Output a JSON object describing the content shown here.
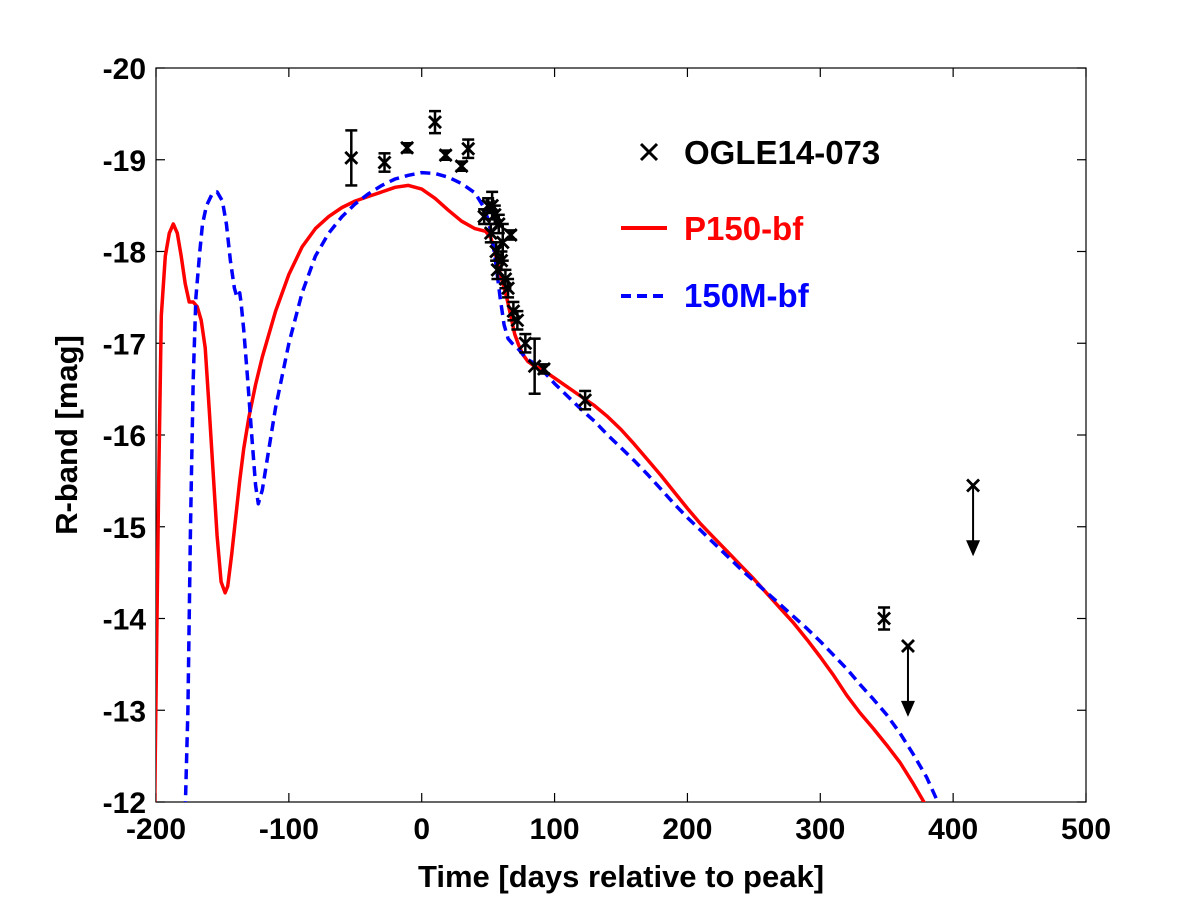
{
  "chart_data": {
    "type": "line",
    "title": "",
    "xlabel": "Time [days relative to peak]",
    "ylabel": "R-band [mag]",
    "xlim": [
      -200,
      500
    ],
    "ylim": [
      -12,
      -20
    ],
    "x_ticks": [
      -200,
      -100,
      0,
      100,
      200,
      300,
      400,
      500
    ],
    "x_tick_labels": [
      "-200",
      "-100",
      "0",
      "100",
      "200",
      "300",
      "400",
      "500"
    ],
    "y_ticks": [
      -12,
      -13,
      -14,
      -15,
      -16,
      -17,
      -18,
      -19,
      -20
    ],
    "y_tick_labels": [
      "-12",
      "-13",
      "-14",
      "-15",
      "-16",
      "-17",
      "-18",
      "-19",
      "-20"
    ],
    "grid": false,
    "legend_position": "top-right",
    "series": [
      {
        "name": "OGLE14-073",
        "kind": "scatter",
        "marker": "x",
        "color": "#000000",
        "points": [
          {
            "x": -53,
            "y": -19.02,
            "err": 0.3
          },
          {
            "x": -28,
            "y": -18.97,
            "err": 0.1
          },
          {
            "x": -11,
            "y": -19.13,
            "err": 0.05
          },
          {
            "x": 10,
            "y": -19.41,
            "err": 0.12
          },
          {
            "x": 18,
            "y": -19.05,
            "err": 0.05
          },
          {
            "x": 30,
            "y": -18.93,
            "err": 0.05
          },
          {
            "x": 35,
            "y": -19.12,
            "err": 0.1
          },
          {
            "x": 47,
            "y": -18.38,
            "err": 0.08
          },
          {
            "x": 50,
            "y": -18.5,
            "err": 0.08
          },
          {
            "x": 52,
            "y": -18.2,
            "err": 0.1
          },
          {
            "x": 53,
            "y": -18.5,
            "err": 0.15
          },
          {
            "x": 55,
            "y": -18.4,
            "err": 0.1
          },
          {
            "x": 56,
            "y": -18.0,
            "err": 0.1
          },
          {
            "x": 57,
            "y": -17.8,
            "err": 0.1
          },
          {
            "x": 58,
            "y": -18.3,
            "err": 0.1
          },
          {
            "x": 60,
            "y": -17.9,
            "err": 0.1
          },
          {
            "x": 61,
            "y": -18.1,
            "err": 0.2
          },
          {
            "x": 63,
            "y": -17.7,
            "err": 0.1
          },
          {
            "x": 65,
            "y": -17.6,
            "err": 0.1
          },
          {
            "x": 67,
            "y": -18.18,
            "err": 0.05
          },
          {
            "x": 69,
            "y": -17.35,
            "err": 0.1
          },
          {
            "x": 72,
            "y": -17.25,
            "err": 0.1
          },
          {
            "x": 78,
            "y": -17.0,
            "err": 0.1
          },
          {
            "x": 85,
            "y": -16.75,
            "err": 0.3
          },
          {
            "x": 92,
            "y": -16.72,
            "err": 0.05
          },
          {
            "x": 123,
            "y": -16.38,
            "err": 0.1
          },
          {
            "x": 348,
            "y": -14.0,
            "err": 0.12
          },
          {
            "x": 366,
            "y": -13.7,
            "err": 0.0,
            "upper_limit": true
          },
          {
            "x": 415,
            "y": -15.45,
            "err": 0.0,
            "upper_limit": true
          }
        ]
      },
      {
        "name": "P150-bf",
        "kind": "line",
        "style": "solid",
        "color": "#ff0000",
        "x": [
          -201,
          -198,
          -196,
          -193,
          -190,
          -187,
          -184,
          -181,
          -178,
          -175,
          -172,
          -169,
          -166,
          -163,
          -160,
          -157,
          -154,
          -151,
          -148,
          -146,
          -143,
          -140,
          -137,
          -134,
          -130,
          -125,
          -120,
          -110,
          -100,
          -90,
          -80,
          -70,
          -60,
          -50,
          -40,
          -30,
          -20,
          -10,
          0,
          10,
          20,
          30,
          40,
          48,
          52,
          55,
          58,
          61,
          64,
          67,
          70,
          73,
          76,
          80,
          85,
          90,
          100,
          110,
          120,
          130,
          140,
          150,
          160,
          170,
          180,
          190,
          200,
          210,
          220,
          230,
          240,
          250,
          260,
          270,
          280,
          290,
          300,
          310,
          320,
          330,
          340,
          350,
          360,
          370,
          380
        ],
        "y": [
          -12.0,
          -15.5,
          -17.3,
          -17.95,
          -18.2,
          -18.3,
          -18.2,
          -17.95,
          -17.65,
          -17.45,
          -17.45,
          -17.4,
          -17.25,
          -16.95,
          -16.3,
          -15.6,
          -14.9,
          -14.4,
          -14.28,
          -14.35,
          -14.7,
          -15.1,
          -15.5,
          -15.85,
          -16.2,
          -16.55,
          -16.85,
          -17.35,
          -17.75,
          -18.05,
          -18.25,
          -18.38,
          -18.48,
          -18.55,
          -18.6,
          -18.65,
          -18.7,
          -18.72,
          -18.68,
          -18.58,
          -18.45,
          -18.33,
          -18.25,
          -18.22,
          -18.15,
          -18.0,
          -17.82,
          -17.65,
          -17.5,
          -17.3,
          -17.1,
          -16.98,
          -16.88,
          -16.8,
          -16.75,
          -16.72,
          -16.62,
          -16.52,
          -16.42,
          -16.32,
          -16.2,
          -16.06,
          -15.9,
          -15.73,
          -15.56,
          -15.38,
          -15.2,
          -15.03,
          -14.88,
          -14.73,
          -14.58,
          -14.43,
          -14.27,
          -14.11,
          -13.95,
          -13.77,
          -13.58,
          -13.38,
          -13.16,
          -12.97,
          -12.8,
          -12.62,
          -12.43,
          -12.2,
          -11.95
        ]
      },
      {
        "name": "150M-bf",
        "kind": "line",
        "style": "dashed",
        "color": "#0000ff",
        "x": [
          -178,
          -176,
          -174,
          -172,
          -170,
          -167,
          -165,
          -162,
          -158,
          -154,
          -150,
          -147,
          -144,
          -141,
          -139,
          -137,
          -136,
          -134,
          -131,
          -128,
          -125,
          -123,
          -120,
          -115,
          -110,
          -100,
          -90,
          -80,
          -70,
          -60,
          -50,
          -40,
          -30,
          -20,
          -10,
          0,
          10,
          20,
          30,
          40,
          46,
          50,
          53,
          56,
          59,
          62,
          65,
          68,
          72,
          76,
          80,
          85,
          90,
          100,
          110,
          120,
          130,
          140,
          150,
          160,
          170,
          180,
          190,
          200,
          210,
          220,
          230,
          240,
          250,
          260,
          270,
          280,
          290,
          300,
          310,
          320,
          330,
          340,
          350,
          360,
          370,
          380,
          390
        ],
        "y": [
          -11.9,
          -13.0,
          -15.0,
          -16.6,
          -17.5,
          -18.0,
          -18.3,
          -18.5,
          -18.62,
          -18.65,
          -18.55,
          -18.3,
          -17.9,
          -17.6,
          -17.5,
          -17.55,
          -17.45,
          -17.15,
          -16.6,
          -16.0,
          -15.45,
          -15.25,
          -15.4,
          -15.85,
          -16.3,
          -17.0,
          -17.55,
          -17.95,
          -18.2,
          -18.38,
          -18.52,
          -18.63,
          -18.72,
          -18.79,
          -18.83,
          -18.86,
          -18.85,
          -18.81,
          -18.74,
          -18.64,
          -18.5,
          -18.35,
          -18.15,
          -17.85,
          -17.5,
          -17.2,
          -17.05,
          -17.0,
          -16.95,
          -16.88,
          -16.82,
          -16.78,
          -16.72,
          -16.56,
          -16.42,
          -16.28,
          -16.15,
          -16.0,
          -15.86,
          -15.72,
          -15.57,
          -15.41,
          -15.25,
          -15.1,
          -14.96,
          -14.82,
          -14.68,
          -14.54,
          -14.41,
          -14.28,
          -14.15,
          -14.02,
          -13.89,
          -13.75,
          -13.6,
          -13.45,
          -13.28,
          -13.12,
          -12.95,
          -12.75,
          -12.52,
          -12.27,
          -11.95
        ]
      }
    ]
  }
}
